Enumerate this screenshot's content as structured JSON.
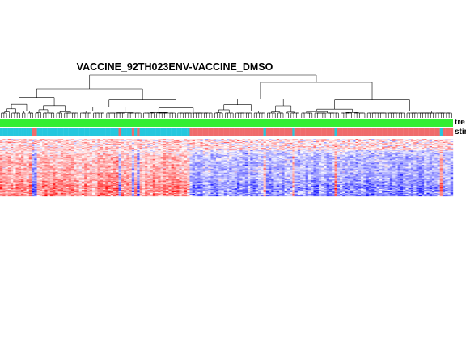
{
  "chart_data": {
    "type": "heatmap",
    "title": "VACCINE_92TH023ENV-VACCINE_DMSO",
    "annotation_tracks": [
      {
        "label": "tre",
        "color": "#33ee33"
      },
      {
        "label": "stir",
        "colors": {
          "group_a": "#25c7de",
          "group_b": "#ef6b6b"
        }
      }
    ],
    "column_groups": [
      {
        "group": "group_a",
        "count": 12
      },
      {
        "group": "group_b",
        "count": 2
      },
      {
        "group": "group_a",
        "count": 31
      },
      {
        "group": "group_b",
        "count": 1
      },
      {
        "group": "group_a",
        "count": 4
      },
      {
        "group": "group_b",
        "count": 1
      },
      {
        "group": "group_a",
        "count": 1
      },
      {
        "group": "group_b",
        "count": 1
      },
      {
        "group": "group_a",
        "count": 19
      },
      {
        "group": "group_b",
        "count": 28
      },
      {
        "group": "group_a",
        "count": 1
      },
      {
        "group": "group_b",
        "count": 10
      },
      {
        "group": "group_a",
        "count": 1
      },
      {
        "group": "group_b",
        "count": 15
      },
      {
        "group": "group_a",
        "count": 1
      },
      {
        "group": "group_b",
        "count": 39
      },
      {
        "group": "group_a",
        "count": 1
      },
      {
        "group": "group_b",
        "count": 4
      }
    ],
    "n_rows": 70,
    "value_range": [
      -2.5,
      2.5
    ],
    "colorscale": {
      "low": "#0000ff",
      "mid": "#ffffff",
      "high": "#ff0000"
    },
    "pattern": "group_a columns trend high (red) in upper rows, group_b columns trend low (blue) in lower rows",
    "row_dendrogram": false,
    "column_dendrogram": true
  }
}
